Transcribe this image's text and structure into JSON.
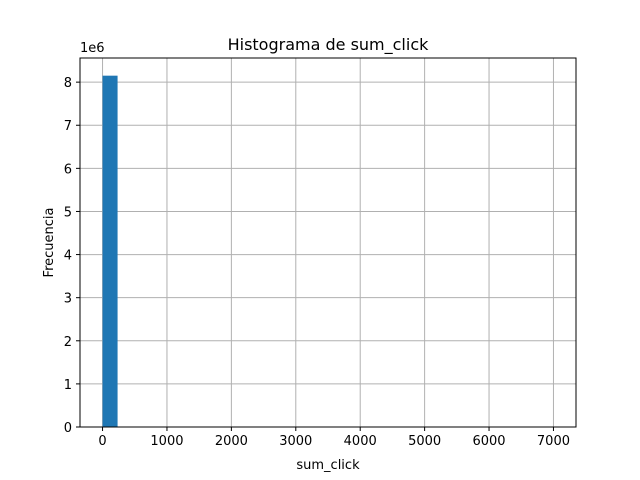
{
  "chart_data": {
    "type": "bar",
    "title": "Histograma de sum_click",
    "xlabel": "sum_click",
    "ylabel": "Frecuencia",
    "y_offset_label": "1e6",
    "bin_edges": [
      0,
      233.3,
      466.7,
      700,
      933.3,
      1166.7,
      1400,
      1633.3,
      1866.7,
      2100,
      2333.3,
      2566.7,
      2800,
      3033.3,
      3266.7,
      3500,
      3733.3,
      3966.7,
      4200,
      4433.3,
      4666.7,
      4900,
      5133.3,
      5366.7,
      5600,
      5833.3,
      6066.7,
      6300,
      6533.3,
      6766.7,
      7000
    ],
    "counts_millions": [
      8.15,
      0,
      0,
      0,
      0,
      0,
      0,
      0,
      0,
      0,
      0,
      0,
      0,
      0,
      0,
      0,
      0,
      0,
      0,
      0,
      0,
      0,
      0,
      0,
      0,
      0,
      0,
      0,
      0,
      0
    ],
    "xlim": [
      -350,
      7350
    ],
    "ylim": [
      0,
      8.56
    ],
    "x_ticks": [
      0,
      1000,
      2000,
      3000,
      4000,
      5000,
      6000,
      7000
    ],
    "y_ticks": [
      0,
      1,
      2,
      3,
      4,
      5,
      6,
      7,
      8
    ],
    "grid": true,
    "bar_color": "#1f77b4",
    "grid_color": "#b0b0b0"
  }
}
